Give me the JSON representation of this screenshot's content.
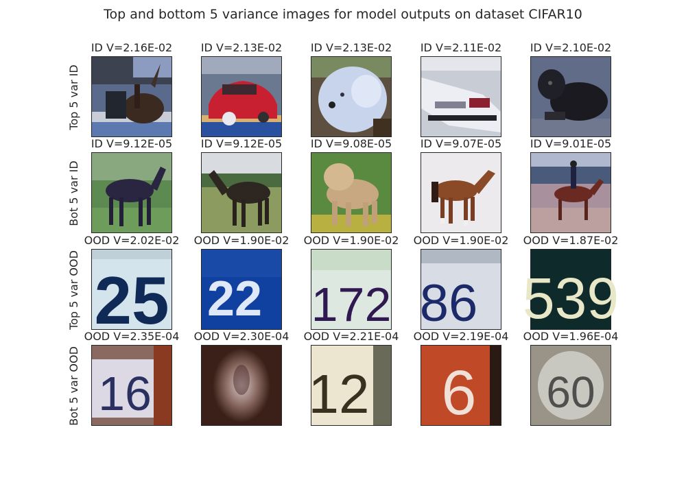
{
  "figure": {
    "title": "Top and bottom 5 variance images for model outputs on dataset CIFAR10"
  },
  "rows": [
    {
      "label": "Top 5 var ID",
      "cells": [
        {
          "caption": "ID V=2.16E-02",
          "icon": "deer-in-snow-thumbnail"
        },
        {
          "caption": "ID V=2.13E-02",
          "icon": "red-car-thumbnail"
        },
        {
          "caption": "ID V=2.13E-02",
          "icon": "white-dog-thumbnail"
        },
        {
          "caption": "ID V=2.11E-02",
          "icon": "white-car-rear-thumbnail"
        },
        {
          "caption": "ID V=2.10E-02",
          "icon": "black-dog-thumbnail"
        }
      ]
    },
    {
      "label": "Bot 5 var ID",
      "cells": [
        {
          "caption": "ID V=9.12E-05",
          "icon": "dark-horse-thumbnail"
        },
        {
          "caption": "ID V=9.12E-05",
          "icon": "brown-horse-thumbnail"
        },
        {
          "caption": "ID V=9.08E-05",
          "icon": "tan-dog-thumbnail"
        },
        {
          "caption": "ID V=9.07E-05",
          "icon": "chestnut-horse-thumbnail"
        },
        {
          "caption": "ID V=9.01E-05",
          "icon": "horse-rider-thumbnail"
        }
      ]
    },
    {
      "label": "Top 5 var OOD",
      "cells": [
        {
          "caption": "OOD V=2.02E-02",
          "icon": "digits-thumbnail",
          "text": "25"
        },
        {
          "caption": "OOD V=1.90E-02",
          "icon": "digits-thumbnail",
          "text": "22"
        },
        {
          "caption": "OOD V=1.90E-02",
          "icon": "digits-thumbnail",
          "text": "172"
        },
        {
          "caption": "OOD V=1.90E-02",
          "icon": "digits-thumbnail",
          "text": "86"
        },
        {
          "caption": "OOD V=1.87E-02",
          "icon": "digits-thumbnail",
          "text": "539"
        }
      ]
    },
    {
      "label": "Bot 5 var OOD",
      "cells": [
        {
          "caption": "OOD V=2.35E-04",
          "icon": "digits-thumbnail",
          "text": "16"
        },
        {
          "caption": "OOD V=2.30E-04",
          "icon": "blurred-digit-thumbnail"
        },
        {
          "caption": "OOD V=2.21E-04",
          "icon": "digits-thumbnail",
          "text": "12"
        },
        {
          "caption": "OOD V=2.19E-04",
          "icon": "digits-thumbnail",
          "text": "6"
        },
        {
          "caption": "OOD V=1.96E-04",
          "icon": "digits-thumbnail",
          "text": "60"
        }
      ]
    }
  ]
}
